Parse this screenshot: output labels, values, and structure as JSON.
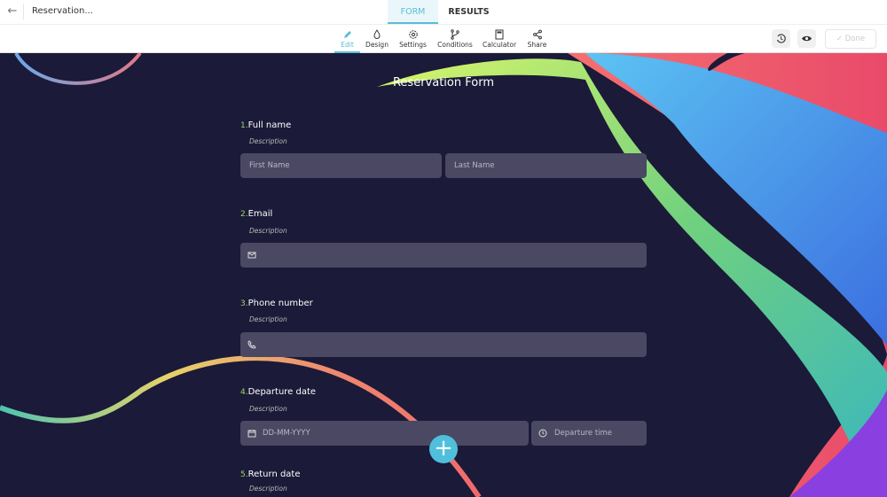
{
  "header": {
    "title": "Reservation...",
    "tabs": [
      {
        "label": "FORM",
        "active": true
      },
      {
        "label": "RESULTS",
        "active": false
      }
    ]
  },
  "toolbar": {
    "items": [
      {
        "label": "Edit",
        "icon": "pencil-icon",
        "active": true
      },
      {
        "label": "Design",
        "icon": "drop-icon"
      },
      {
        "label": "Settings",
        "icon": "gear-icon"
      },
      {
        "label": "Conditions",
        "icon": "branch-icon"
      },
      {
        "label": "Calculator",
        "icon": "calculator-icon"
      },
      {
        "label": "Share",
        "icon": "share-icon"
      }
    ],
    "history_icon": "history-icon",
    "preview_icon": "eye-icon",
    "done_label": "Done"
  },
  "form": {
    "title": "Reservation Form",
    "questions": [
      {
        "num": "1.",
        "label": "Full name",
        "description": "Description",
        "fields": [
          "First Name",
          "Last Name"
        ]
      },
      {
        "num": "2.",
        "label": "Email",
        "description": "Description",
        "icon": "envelope-icon"
      },
      {
        "num": "3.",
        "label": "Phone number",
        "description": "Description",
        "icon": "phone-icon"
      },
      {
        "num": "4.",
        "label": "Departure date",
        "description": "Description",
        "fields": [
          "DD-MM-YYYY",
          "Departure time"
        ]
      },
      {
        "num": "5.",
        "label": "Return date",
        "description": "Description"
      }
    ]
  },
  "colors": {
    "accent": "#5bbcd6",
    "background": "#1b1a38",
    "field": "#4a4862",
    "number": "#9fd36a"
  }
}
